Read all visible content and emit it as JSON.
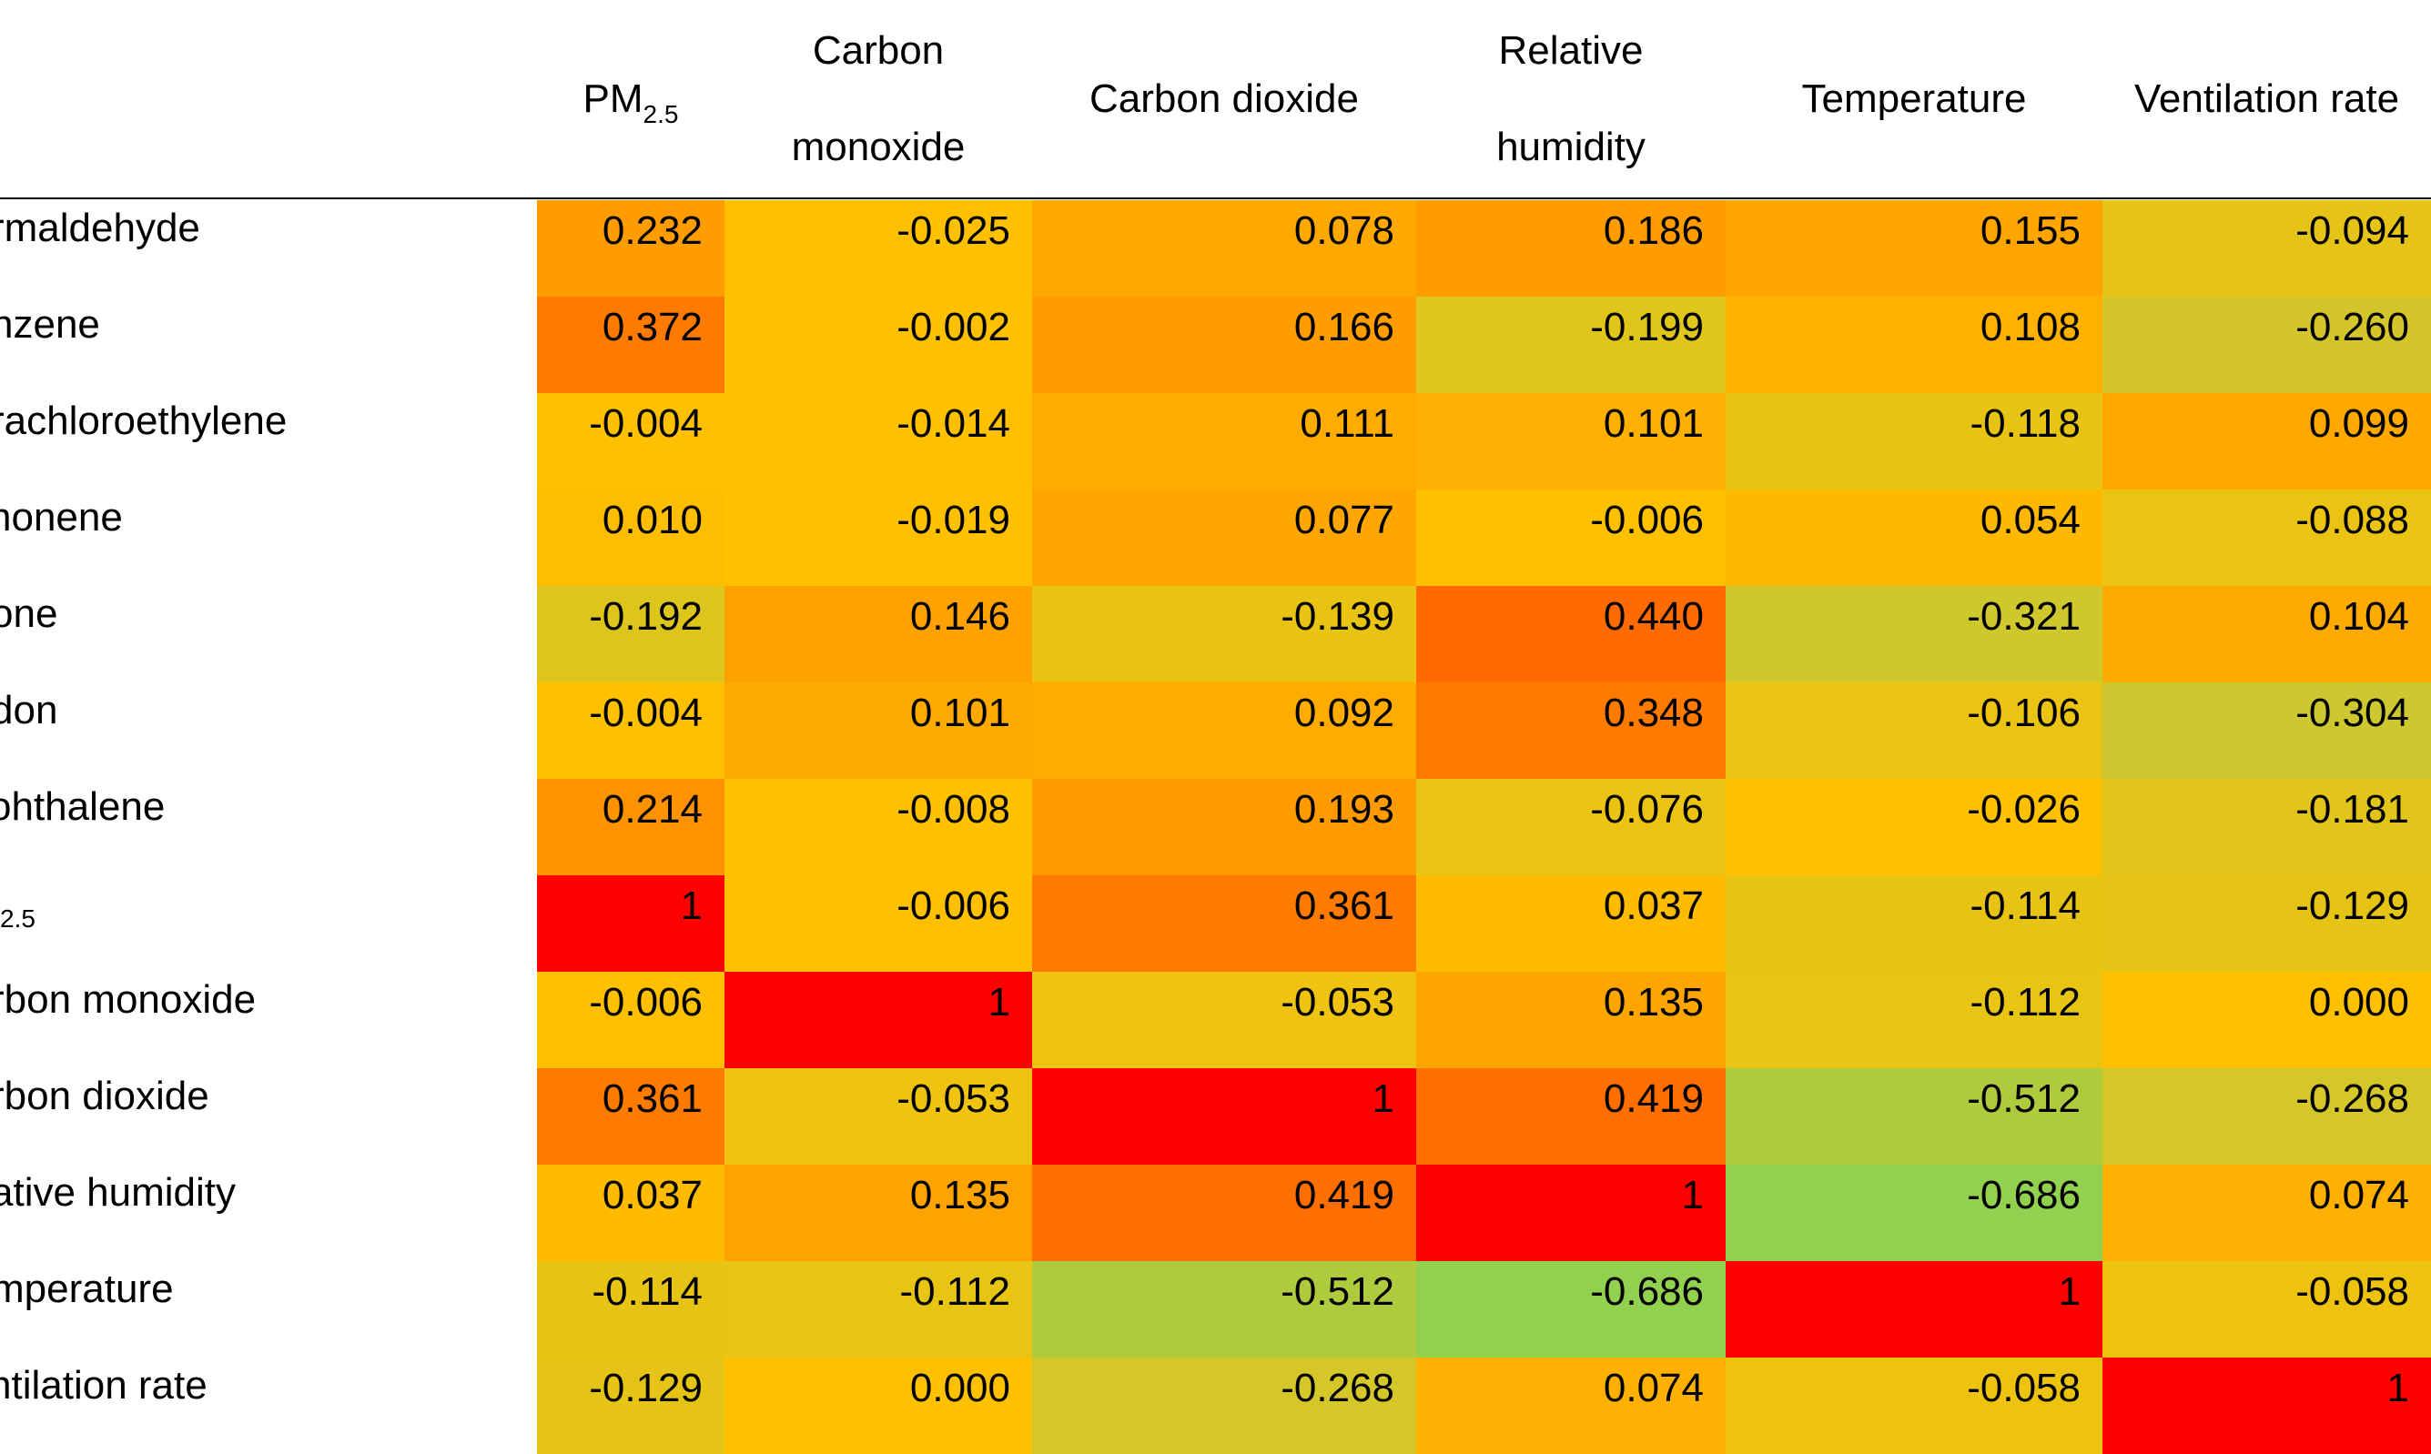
{
  "columns": [
    {
      "label": "PM",
      "sub": "2.5"
    },
    {
      "label": "Carbon monoxide",
      "line1": "Carbon",
      "line2": "monoxide"
    },
    {
      "label": "Carbon dioxide"
    },
    {
      "label": "Relative humidity",
      "line1": "Relative",
      "line2": "humidity"
    },
    {
      "label": "Temperature"
    },
    {
      "label": "Ventilation rate"
    }
  ],
  "rows": [
    {
      "label": "rmaldehyde",
      "values": [
        "0.232",
        "-0.025",
        "0.078",
        "0.186",
        "0.155",
        "-0.094"
      ],
      "colors": [
        "#ff9d00",
        "#ffc000",
        "#ffa800",
        "#ff9c00",
        "#ffa500",
        "#e5c417"
      ]
    },
    {
      "label": "nzene",
      "values": [
        "0.372",
        "-0.002",
        "0.166",
        "-0.199",
        "0.108",
        "-0.260"
      ],
      "colors": [
        "#ff7a00",
        "#ffc000",
        "#ff9d00",
        "#e0c51b",
        "#ffb100",
        "#d4c62a"
      ]
    },
    {
      "label": "rachloroethylene",
      "values": [
        "-0.004",
        "-0.014",
        "0.111",
        "0.101",
        "-0.118",
        "0.099"
      ],
      "colors": [
        "#ffc000",
        "#ffc000",
        "#ffac00",
        "#ffb000",
        "#e7c414",
        "#ffa800"
      ]
    },
    {
      "label": "nonene",
      "values": [
        "0.010",
        "-0.019",
        "0.077",
        "-0.006",
        "0.054",
        "-0.088"
      ],
      "colors": [
        "#ffbd00",
        "#ffc000",
        "#ffa700",
        "#ffc000",
        "#ffb800",
        "#ebc312"
      ]
    },
    {
      "label": "one",
      "values": [
        "-0.192",
        "0.146",
        "-0.139",
        "0.440",
        "-0.321",
        "0.104"
      ],
      "colors": [
        "#dec51c",
        "#ffa100",
        "#e9c312",
        "#ff6b00",
        "#cec82d",
        "#ffaa00"
      ]
    },
    {
      "label": "don",
      "values": [
        "-0.004",
        "0.101",
        "0.092",
        "0.348",
        "-0.106",
        "-0.304"
      ],
      "colors": [
        "#ffc000",
        "#ffaa00",
        "#ffab00",
        "#ff7a00",
        "#ebc312",
        "#cdc82f"
      ]
    },
    {
      "label": "ohthalene",
      "values": [
        "0.214",
        "-0.008",
        "0.193",
        "-0.076",
        "-0.026",
        "-0.181"
      ],
      "colors": [
        "#ff9200",
        "#ffc000",
        "#ff9b00",
        "#ebc312",
        "#ffc000",
        "#e2c51a"
      ]
    },
    {
      "label": "2.5",
      "labelSub": true,
      "values": [
        "1",
        "-0.006",
        "0.361",
        "0.037",
        "-0.114",
        "-0.129"
      ],
      "colors": [
        "#ff0000",
        "#ffc000",
        "#ff7b00",
        "#ffbb00",
        "#e7c414",
        "#e6c415"
      ]
    },
    {
      "label": "rbon monoxide",
      "values": [
        "-0.006",
        "1",
        "-0.053",
        "0.135",
        "-0.112",
        "0.000"
      ],
      "colors": [
        "#ffc000",
        "#ff0000",
        "#efc30f",
        "#ffa500",
        "#e8c413",
        "#ffc000"
      ]
    },
    {
      "label": "rbon dioxide",
      "values": [
        "0.361",
        "-0.053",
        "1",
        "0.419",
        "-0.512",
        "-0.268"
      ],
      "colors": [
        "#ff7b00",
        "#efc30f",
        "#ff0000",
        "#ff6e00",
        "#b0ca3e",
        "#d5c72a"
      ]
    },
    {
      "label": "ative humidity",
      "values": [
        "0.037",
        "0.135",
        "0.419",
        "1",
        "-0.686",
        "0.074"
      ],
      "colors": [
        "#ffbb00",
        "#ffa300",
        "#ff6e00",
        "#ff0000",
        "#92d050",
        "#ffb000"
      ]
    },
    {
      "label": "mperature",
      "values": [
        "-0.114",
        "-0.112",
        "-0.512",
        "-0.686",
        "1",
        "-0.058"
      ],
      "colors": [
        "#e7c414",
        "#e8c413",
        "#b0ca3e",
        "#92d050",
        "#ff0000",
        "#eec30f"
      ]
    },
    {
      "label": "ntilation rate",
      "values": [
        "-0.129",
        "0.000",
        "-0.268",
        "0.074",
        "-0.058",
        "1"
      ],
      "colors": [
        "#e6c415",
        "#ffc000",
        "#d5c72a",
        "#ffb000",
        "#eec30f",
        "#ff0000"
      ]
    }
  ]
}
